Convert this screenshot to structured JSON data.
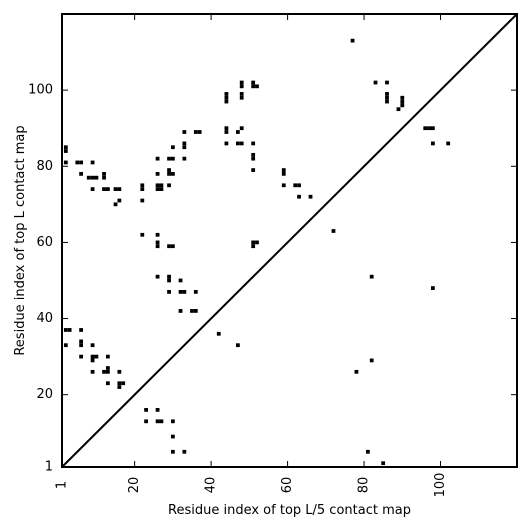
{
  "chart_data": {
    "type": "heatmap",
    "title": "",
    "xlabel": "Residue index of top L/5 contact map",
    "ylabel": "Residue index of top L contact map",
    "xlim": [
      1,
      120
    ],
    "ylim": [
      1,
      120
    ],
    "x_ticks": [
      1,
      20,
      40,
      60,
      80,
      100
    ],
    "y_ticks": [
      1,
      20,
      40,
      60,
      80,
      100
    ],
    "x_tick_labels": [
      "1",
      "20",
      "40",
      "60",
      "80",
      "100"
    ],
    "y_tick_labels": [
      "1",
      "20",
      "40",
      "60",
      "80",
      "100"
    ],
    "x_tick_rotation": -90,
    "diagonal": true,
    "grid": false,
    "colors": {
      "contact": "#000000",
      "background": "#ffffff",
      "axis": "#000000"
    },
    "upper_triangle_contacts": [
      [
        2,
        85
      ],
      [
        2,
        84
      ],
      [
        2,
        81
      ],
      [
        5,
        81
      ],
      [
        6,
        81
      ],
      [
        6,
        78
      ],
      [
        8,
        77
      ],
      [
        9,
        77
      ],
      [
        9,
        74
      ],
      [
        9,
        81
      ],
      [
        10,
        77
      ],
      [
        12,
        78
      ],
      [
        12,
        77
      ],
      [
        12,
        74
      ],
      [
        13,
        74
      ],
      [
        15,
        74
      ],
      [
        15,
        70
      ],
      [
        16,
        74
      ],
      [
        16,
        71
      ],
      [
        22,
        75
      ],
      [
        22,
        74
      ],
      [
        22,
        71
      ],
      [
        26,
        75
      ],
      [
        26,
        74
      ],
      [
        26,
        78
      ],
      [
        26,
        82
      ],
      [
        27,
        75
      ],
      [
        27,
        74
      ],
      [
        29,
        82
      ],
      [
        29,
        79
      ],
      [
        29,
        78
      ],
      [
        29,
        75
      ],
      [
        30,
        85
      ],
      [
        30,
        82
      ],
      [
        30,
        78
      ],
      [
        33,
        89
      ],
      [
        33,
        86
      ],
      [
        33,
        85
      ],
      [
        33,
        82
      ],
      [
        36,
        89
      ],
      [
        37,
        89
      ],
      [
        44,
        99
      ],
      [
        44,
        98
      ],
      [
        44,
        97
      ],
      [
        44,
        90
      ],
      [
        44,
        89
      ],
      [
        44,
        86
      ],
      [
        47,
        89
      ],
      [
        47,
        86
      ],
      [
        48,
        102
      ],
      [
        48,
        101
      ],
      [
        48,
        99
      ],
      [
        48,
        98
      ],
      [
        48,
        90
      ],
      [
        48,
        86
      ],
      [
        51,
        102
      ],
      [
        51,
        101
      ],
      [
        51,
        86
      ],
      [
        51,
        83
      ],
      [
        51,
        82
      ],
      [
        51,
        79
      ],
      [
        52,
        101
      ],
      [
        59,
        79
      ],
      [
        59,
        78
      ],
      [
        59,
        75
      ],
      [
        62,
        75
      ],
      [
        63,
        75
      ],
      [
        63,
        72
      ],
      [
        66,
        72
      ],
      [
        22,
        62
      ],
      [
        26,
        62
      ],
      [
        26,
        60
      ],
      [
        26,
        59
      ],
      [
        29,
        59
      ],
      [
        30,
        59
      ],
      [
        51,
        60
      ],
      [
        51,
        59
      ],
      [
        52,
        60
      ],
      [
        77,
        113
      ],
      [
        83,
        102
      ],
      [
        86,
        102
      ],
      [
        86,
        99
      ],
      [
        86,
        98
      ],
      [
        86,
        97
      ],
      [
        89,
        95
      ],
      [
        90,
        98
      ],
      [
        90,
        97
      ],
      [
        90,
        96
      ],
      [
        96,
        90
      ],
      [
        97,
        90
      ],
      [
        98,
        90
      ],
      [
        98,
        86
      ],
      [
        102,
        86
      ]
    ],
    "lower_triangle_contacts": [
      [
        26,
        51
      ],
      [
        29,
        51
      ],
      [
        29,
        50
      ],
      [
        29,
        47
      ],
      [
        32,
        50
      ],
      [
        32,
        47
      ],
      [
        33,
        47
      ],
      [
        36,
        47
      ],
      [
        32,
        42
      ],
      [
        35,
        42
      ],
      [
        36,
        42
      ],
      [
        42,
        36
      ],
      [
        47,
        33
      ],
      [
        72,
        63
      ],
      [
        78,
        26
      ],
      [
        82,
        51
      ],
      [
        82,
        29
      ],
      [
        98,
        48
      ],
      [
        2,
        37
      ],
      [
        3,
        37
      ],
      [
        2,
        33
      ],
      [
        6,
        37
      ],
      [
        6,
        34
      ],
      [
        6,
        33
      ],
      [
        6,
        30
      ],
      [
        9,
        33
      ],
      [
        9,
        30
      ],
      [
        9,
        29
      ],
      [
        9,
        26
      ],
      [
        10,
        30
      ],
      [
        12,
        26
      ],
      [
        13,
        30
      ],
      [
        13,
        27
      ],
      [
        13,
        26
      ],
      [
        13,
        23
      ],
      [
        16,
        26
      ],
      [
        16,
        23
      ],
      [
        16,
        22
      ],
      [
        17,
        23
      ],
      [
        23,
        16
      ],
      [
        23,
        13
      ],
      [
        26,
        16
      ],
      [
        26,
        13
      ],
      [
        27,
        13
      ],
      [
        30,
        13
      ],
      [
        30,
        9
      ],
      [
        30,
        5
      ],
      [
        33,
        5
      ],
      [
        81,
        5
      ],
      [
        85,
        2
      ]
    ]
  }
}
